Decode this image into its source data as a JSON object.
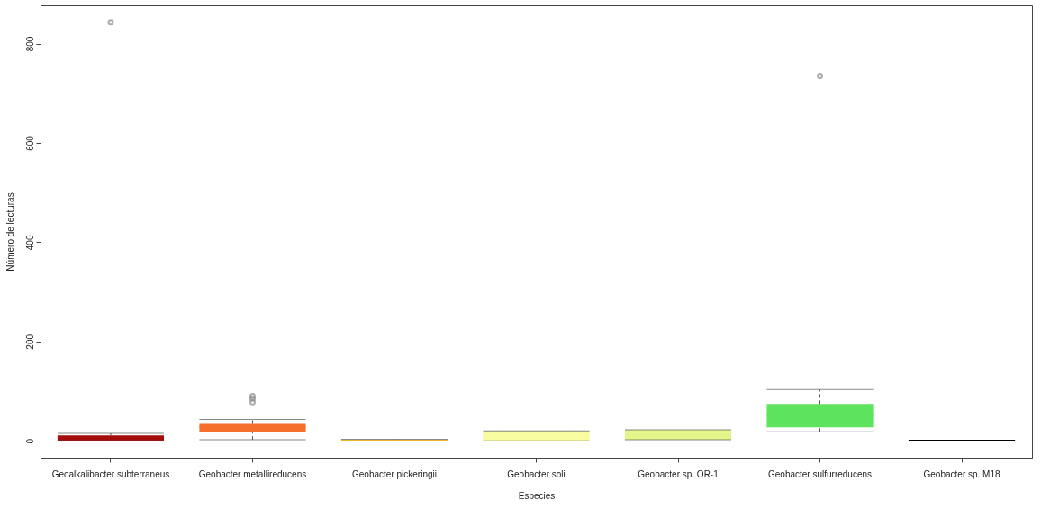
{
  "chart_data": {
    "type": "box",
    "xlabel": "Especies",
    "ylabel": "Número de lecturas",
    "categories": [
      "Geoalkalibacter subterraneus",
      "Geobacter metallireducens",
      "Geobacter pickeringii",
      "Geobacter soli",
      "Geobacter sp. OR-1",
      "Geobacter sulfurreducens",
      "Geobacter   sp. M18"
    ],
    "colors": [
      "#a50d0d",
      "#f4702c",
      "#e8b82a",
      "#f8fca0",
      "#e4f58a",
      "#5ee35e",
      "#000000"
    ],
    "boxes": [
      {
        "low": 0,
        "q1": 0,
        "median": 5,
        "q3": 11,
        "high": 15,
        "outliers": [
          843
        ]
      },
      {
        "low": 2,
        "q1": 18,
        "median": 27,
        "q3": 34,
        "high": 43,
        "outliers": [
          78,
          85,
          90
        ]
      },
      {
        "low": 0,
        "q1": 0,
        "median": 1,
        "q3": 2,
        "high": 3
      },
      {
        "low": 0,
        "q1": 0,
        "median": 10,
        "q3": 20,
        "high": 20
      },
      {
        "low": 2,
        "q1": 2,
        "median": 12,
        "q3": 22,
        "high": 22
      },
      {
        "low": 18,
        "q1": 27,
        "median": 50,
        "q3": 74,
        "high": 103,
        "outliers": [
          735
        ]
      },
      {
        "low": 0,
        "q1": 0,
        "median": 1,
        "q3": 1,
        "high": 1
      }
    ],
    "ylim": [
      -34,
      877
    ],
    "yticks": [
      0,
      200,
      400,
      600,
      800
    ],
    "grid": false
  }
}
